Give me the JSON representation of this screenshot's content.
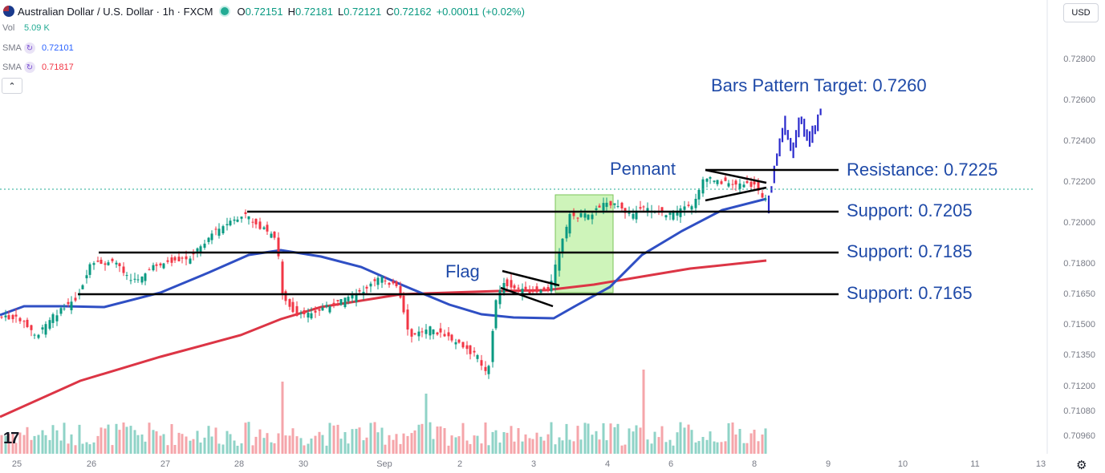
{
  "header": {
    "symbol_title": "Australian Dollar / U.S. Dollar · 1h · FXCM",
    "open_key": "O",
    "open": "0.72151",
    "high_key": "H",
    "high": "0.72181",
    "low_key": "L",
    "low": "0.72121",
    "close_key": "C",
    "close": "0.72162",
    "change": "+0.00011 (+0.02%)"
  },
  "indicators": [
    {
      "name": "Vol",
      "value": "5.09 K",
      "color": "#22ab94"
    },
    {
      "name": "SMA",
      "value": "0.72101",
      "color": "#2962ff"
    },
    {
      "name": "SMA",
      "value": "0.71817",
      "color": "#f23645"
    }
  ],
  "currency_label": "USD",
  "logo_text": "17",
  "chart_data": {
    "type": "candlestick",
    "y_axis_ticks": [
      "0.72800",
      "0.72600",
      "0.72400",
      "0.72200",
      "0.72000",
      "0.71800",
      "0.71650",
      "0.71500",
      "0.71350",
      "0.71200",
      "0.71080",
      "0.70960"
    ],
    "x_axis_ticks": [
      "25",
      "26",
      "27",
      "28",
      "30",
      "Sep",
      "2",
      "3",
      "4",
      "6",
      "8",
      "9",
      "10",
      "11",
      "13"
    ],
    "annotations": [
      {
        "text": "Bars Pattern Target: 0.7260",
        "value": 0.726
      },
      {
        "text": "Resistance: 0.7225",
        "value": 0.7225
      },
      {
        "text": "Support: 0.7205",
        "value": 0.7205
      },
      {
        "text": "Support: 0.7185",
        "value": 0.7185
      },
      {
        "text": "Support: 0.7165",
        "value": 0.7165
      },
      {
        "text": "Pennant"
      },
      {
        "text": "Flag"
      }
    ],
    "series": [
      {
        "name": "SMA",
        "color": "#2f4fc4"
      },
      {
        "name": "SMA",
        "color": "#dc3545"
      }
    ],
    "colors": {
      "up": "#089981",
      "down": "#f23645",
      "projection": "#2a2acc",
      "highlight": "#b9ef9c"
    }
  }
}
